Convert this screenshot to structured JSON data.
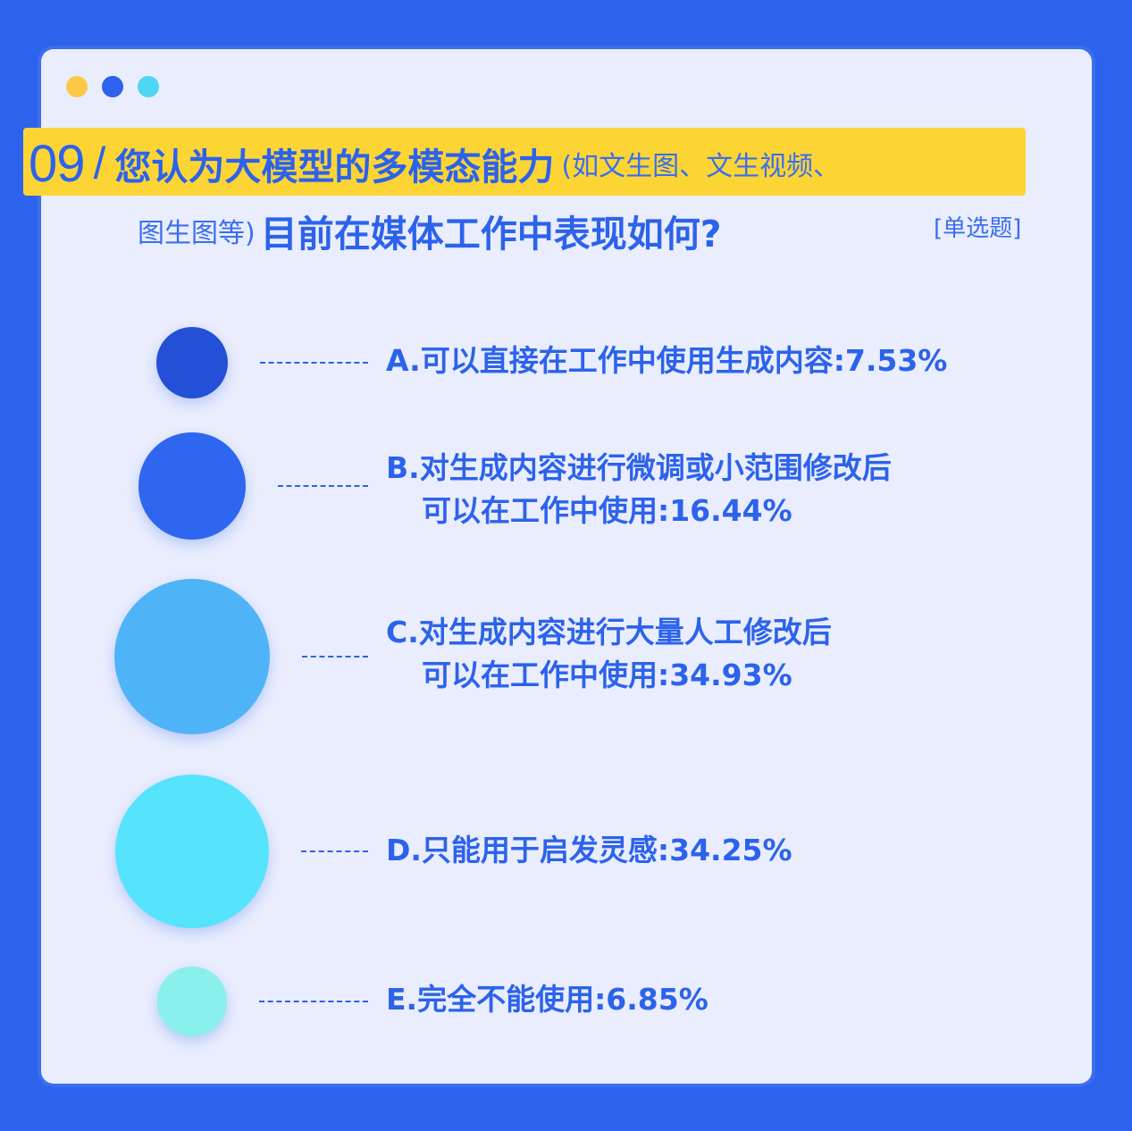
{
  "window": {
    "dots": [
      {
        "name": "yellow-dot",
        "color": "#fcc846"
      },
      {
        "name": "blue-dot",
        "color": "#2c62ec"
      },
      {
        "name": "cyan-dot",
        "color": "#4fd6f2"
      }
    ]
  },
  "question": {
    "number": "09",
    "slash": "/",
    "main_line1": "您认为大模型的多模态能力",
    "sub_line1": "(如文生图、文生视频、",
    "sub_line2": "图生图等)",
    "main_line2": "目前在媒体工作中表现如何?",
    "type": "[单选题]"
  },
  "chart_data": {
    "type": "bubble",
    "title": "",
    "categories": [
      "A",
      "B",
      "C",
      "D",
      "E"
    ],
    "values": [
      7.53,
      16.44,
      34.93,
      34.25,
      6.85
    ],
    "unit": "%",
    "options": [
      {
        "key": "A",
        "line1": "A.可以直接在工作中使用生成内容:7.53%",
        "line2": "",
        "value": 7.53,
        "color": "#2350d6"
      },
      {
        "key": "B",
        "line1": "B.对生成内容进行微调或小范围修改后",
        "line2": "可以在工作中使用:16.44%",
        "value": 16.44,
        "color": "#2f66ef"
      },
      {
        "key": "C",
        "line1": "C.对生成内容进行大量人工修改后",
        "line2": "可以在工作中使用:34.93%",
        "value": 34.93,
        "color": "#4fb3f8"
      },
      {
        "key": "D",
        "line1": "D.只能用于启发灵感:34.25%",
        "line2": "",
        "value": 34.25,
        "color": "#55e4fb"
      },
      {
        "key": "E",
        "line1": "E.完全不能使用:6.85%",
        "line2": "",
        "value": 6.85,
        "color": "#8af0ec"
      }
    ]
  }
}
